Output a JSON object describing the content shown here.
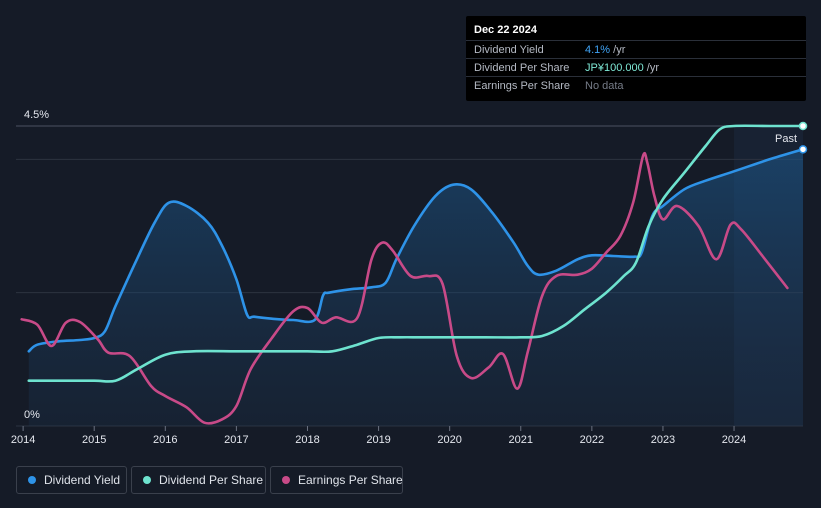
{
  "tooltip": {
    "date": "Dec 22 2024",
    "rows": [
      {
        "label": "Dividend Yield",
        "value": "4.1%",
        "suffix": " /yr"
      },
      {
        "label": "Dividend Per Share",
        "value": "JP¥100.000",
        "suffix": " /yr"
      },
      {
        "label": "Earnings Per Share",
        "value": "No data",
        "suffix": ""
      }
    ]
  },
  "past_label": "Past",
  "legend": [
    {
      "label": "Dividend Yield"
    },
    {
      "label": "Dividend Per Share"
    },
    {
      "label": "Earnings Per Share"
    }
  ],
  "colors": {
    "background": "#151b27",
    "dividend_yield": "#2e93e8",
    "dividend_per_share": "#6ee3cf",
    "earnings_per_share": "#c84a88",
    "grid": "#2c3340"
  },
  "chart_data": {
    "type": "line",
    "title": "",
    "xlabel": "",
    "ylabel": "",
    "ylim": [
      0,
      4.5
    ],
    "y_ticks": [
      "4.5%",
      "0%"
    ],
    "x_ticks": [
      "2014",
      "2015",
      "2016",
      "2017",
      "2018",
      "2019",
      "2020",
      "2021",
      "2022",
      "2023",
      "2024"
    ],
    "x_range": [
      2013.9,
      2024.97
    ],
    "past_start": 2024.0,
    "series": [
      {
        "name": "Dividend Yield",
        "unit": "%",
        "x": [
          2014.08,
          2014.2,
          2014.5,
          2014.8,
          2015.0,
          2015.15,
          2015.3,
          2015.6,
          2015.85,
          2016.05,
          2016.3,
          2016.6,
          2016.8,
          2017.0,
          2017.15,
          2017.25,
          2017.5,
          2017.8,
          2018.1,
          2018.22,
          2018.3,
          2018.6,
          2018.9,
          2019.1,
          2019.25,
          2019.5,
          2019.8,
          2020.05,
          2020.3,
          2020.6,
          2020.9,
          2021.1,
          2021.25,
          2021.5,
          2021.8,
          2022.0,
          2022.3,
          2022.6,
          2022.7,
          2022.85,
          2023.0,
          2023.3,
          2023.6,
          2024.0,
          2024.5,
          2024.97
        ],
        "y": [
          1.12,
          1.22,
          1.27,
          1.29,
          1.32,
          1.42,
          1.8,
          2.5,
          3.05,
          3.35,
          3.3,
          3.05,
          2.7,
          2.2,
          1.67,
          1.64,
          1.61,
          1.59,
          1.59,
          1.96,
          2.0,
          2.05,
          2.08,
          2.15,
          2.5,
          3.0,
          3.45,
          3.62,
          3.55,
          3.2,
          2.75,
          2.4,
          2.27,
          2.33,
          2.5,
          2.56,
          2.55,
          2.54,
          2.6,
          3.15,
          3.3,
          3.55,
          3.68,
          3.82,
          4.0,
          4.15
        ]
      },
      {
        "name": "Dividend Per Share",
        "unit": "JP¥",
        "x": [
          2014.08,
          2014.5,
          2015.0,
          2015.3,
          2015.6,
          2016.0,
          2016.4,
          2017.0,
          2017.5,
          2018.0,
          2018.35,
          2018.7,
          2019.0,
          2019.3,
          2019.6,
          2020.0,
          2020.5,
          2021.0,
          2021.3,
          2021.6,
          2021.9,
          2022.2,
          2022.45,
          2022.62,
          2022.8,
          2023.0,
          2023.3,
          2023.6,
          2023.8,
          2024.0,
          2024.5,
          2024.97
        ],
        "y": [
          0.68,
          0.68,
          0.68,
          0.68,
          0.85,
          1.07,
          1.12,
          1.12,
          1.12,
          1.12,
          1.12,
          1.22,
          1.32,
          1.33,
          1.33,
          1.33,
          1.33,
          1.33,
          1.35,
          1.5,
          1.75,
          2.0,
          2.25,
          2.45,
          3.0,
          3.4,
          3.8,
          4.2,
          4.45,
          4.5,
          4.5,
          4.5
        ]
      },
      {
        "name": "Earnings Per Share",
        "unit": "JP¥",
        "x": [
          2013.98,
          2014.2,
          2014.4,
          2014.6,
          2014.8,
          2015.05,
          2015.2,
          2015.5,
          2015.8,
          2016.0,
          2016.3,
          2016.55,
          2016.8,
          2017.0,
          2017.2,
          2017.5,
          2017.8,
          2018.0,
          2018.2,
          2018.4,
          2018.7,
          2018.9,
          2019.05,
          2019.2,
          2019.45,
          2019.7,
          2019.9,
          2020.1,
          2020.3,
          2020.55,
          2020.75,
          2020.95,
          2021.1,
          2021.3,
          2021.5,
          2021.8,
          2022.0,
          2022.2,
          2022.4,
          2022.58,
          2022.72,
          2022.78,
          2022.88,
          2023.0,
          2023.2,
          2023.5,
          2023.75,
          2023.95,
          2024.1,
          2024.4,
          2024.75
        ],
        "y": [
          1.6,
          1.52,
          1.2,
          1.55,
          1.56,
          1.3,
          1.1,
          1.05,
          0.6,
          0.45,
          0.28,
          0.05,
          0.1,
          0.3,
          0.85,
          1.32,
          1.72,
          1.77,
          1.55,
          1.63,
          1.62,
          2.5,
          2.75,
          2.63,
          2.25,
          2.25,
          2.13,
          1.05,
          0.72,
          0.88,
          1.08,
          0.56,
          1.12,
          1.95,
          2.25,
          2.27,
          2.36,
          2.6,
          2.85,
          3.35,
          4.05,
          3.95,
          3.45,
          3.1,
          3.3,
          3.0,
          2.5,
          3.02,
          2.95,
          2.55,
          2.07
        ]
      }
    ]
  }
}
